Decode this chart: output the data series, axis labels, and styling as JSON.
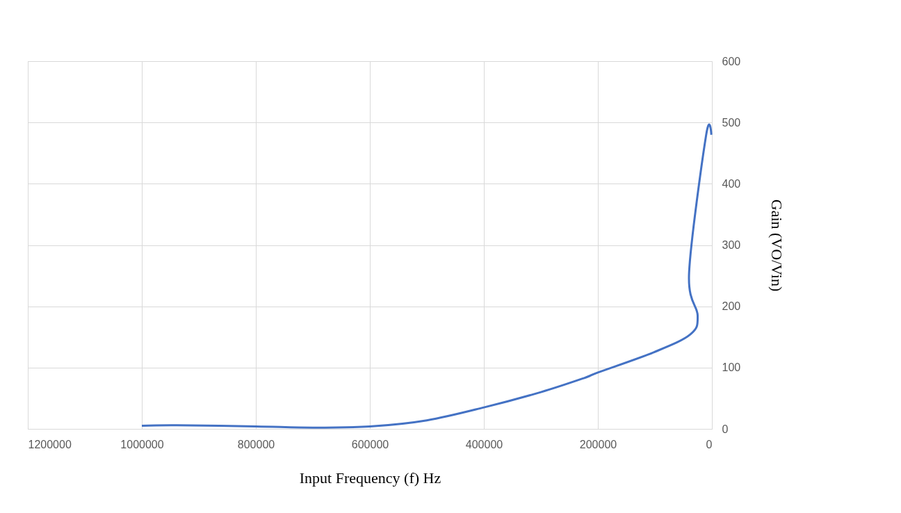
{
  "chart_data": {
    "type": "line",
    "xlabel": "Input Frequency (f) Hz",
    "ylabel": "Gain (VO/Vin)",
    "x": [
      1000000,
      940000,
      800000,
      700000,
      600000,
      500000,
      400000,
      300000,
      224000,
      200000,
      102000,
      38000,
      25000,
      40000,
      10000,
      1000
    ],
    "series": [
      {
        "color": "#4472c4",
        "values": [
          5,
          6,
          4,
          2,
          4,
          14,
          35,
          60,
          83,
          92,
          125,
          154,
          185,
          255,
          480,
          480
        ]
      }
    ],
    "xlim": [
      1200000,
      0
    ],
    "xticks": [
      1200000,
      1000000,
      800000,
      600000,
      400000,
      200000,
      0
    ],
    "ylim": [
      0,
      600
    ],
    "yticks": [
      0,
      100,
      200,
      300,
      400,
      500,
      600
    ],
    "grid": true,
    "marker": "none",
    "line_style": "solid"
  }
}
